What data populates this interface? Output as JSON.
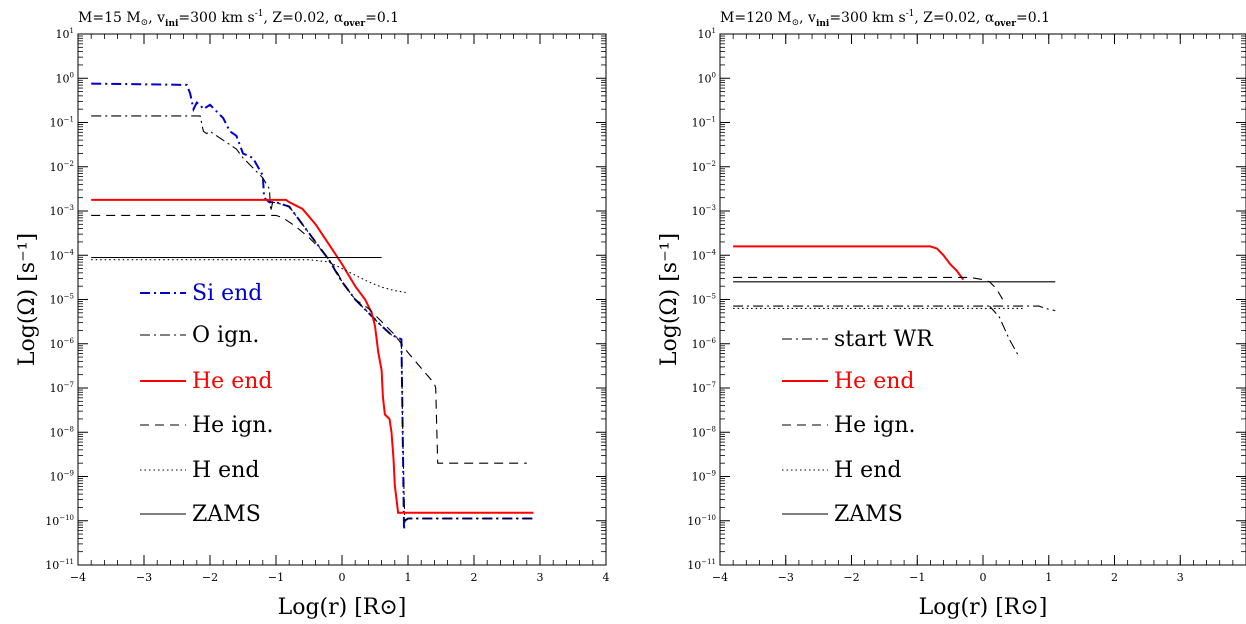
{
  "chart_data": [
    {
      "type": "line",
      "title_parts": {
        "M": "M=15 M",
        "sun": "⊙",
        "v": ", v",
        "v_sub": "ini",
        "v_eq": "=300 km s",
        "v_exp": "-1",
        "z": ", Z=0.02, α",
        "a_sub": "over",
        "a_eq": "=0.1"
      },
      "xlabel": "Log(r) [R⊙]",
      "ylabel": "Log(Ω) [s⁻¹]",
      "xlim": [
        -4,
        4
      ],
      "ylim": [
        -11,
        1
      ],
      "xticks": [
        -4,
        -3,
        -2,
        -1,
        0,
        1,
        2,
        3,
        4
      ],
      "yticks": [
        1,
        0,
        -1,
        -2,
        -3,
        -4,
        -5,
        -6,
        -7,
        -8,
        -9,
        -10,
        -11
      ],
      "ytick_base": "10",
      "legend_position": "bottom-left",
      "series": [
        {
          "name": "Si end",
          "color": "#0000cc",
          "dash": "dashdot",
          "x": [
            -3.8,
            -2.35,
            -2.3,
            -2.25,
            -2.2,
            -2.15,
            -2.1,
            -2.0,
            -1.9,
            -1.8,
            -1.7,
            -1.6,
            -1.5,
            -1.35,
            -1.2,
            -1.18,
            -1.1,
            -1.0,
            -0.9,
            -0.8,
            -0.7,
            -0.6,
            -0.4,
            -0.2,
            0.0,
            0.2,
            0.4,
            0.6,
            0.75,
            0.9,
            0.92,
            0.94,
            0.95,
            1.0,
            1.5,
            2.0,
            2.5,
            2.9
          ],
          "y": [
            -0.12,
            -0.15,
            -0.35,
            -0.7,
            -0.55,
            -0.6,
            -0.7,
            -0.6,
            -0.75,
            -0.9,
            -1.2,
            -1.3,
            -1.7,
            -1.8,
            -2.2,
            -2.7,
            -2.8,
            -2.8,
            -2.85,
            -2.9,
            -3.1,
            -3.3,
            -3.7,
            -4.1,
            -4.6,
            -5.0,
            -5.3,
            -5.6,
            -5.8,
            -5.9,
            -8.0,
            -10.2,
            -10.0,
            -9.95,
            -9.95,
            -9.95,
            -9.95,
            -9.95
          ]
        },
        {
          "name": "O ign.",
          "color": "#000000",
          "dash": "dashdot",
          "x": [
            -3.8,
            -2.15,
            -2.1,
            -2.05,
            -2.0,
            -1.9,
            -1.8,
            -1.7,
            -1.6,
            -1.5,
            -1.4,
            -1.3,
            -1.2,
            -1.1,
            -1.08,
            -1.05,
            -0.9,
            -0.8,
            -0.6,
            -0.4,
            -0.2,
            0.0,
            0.2,
            0.4,
            0.6,
            0.75,
            0.9,
            0.92,
            0.95,
            1.0,
            1.5,
            2.0,
            2.5,
            2.9
          ],
          "y": [
            -0.85,
            -0.85,
            -1.2,
            -1.25,
            -1.2,
            -1.3,
            -1.4,
            -1.5,
            -1.6,
            -1.8,
            -1.95,
            -2.1,
            -2.25,
            -2.5,
            -3.0,
            -2.8,
            -2.85,
            -2.9,
            -3.3,
            -3.7,
            -4.1,
            -4.6,
            -5.0,
            -5.3,
            -5.6,
            -5.8,
            -5.9,
            -8.0,
            -10.0,
            -9.95,
            -9.95,
            -9.95,
            -9.95,
            -9.95
          ]
        },
        {
          "name": "He end",
          "color": "#ff0000",
          "dash": "solid",
          "x": [
            -3.8,
            -2.0,
            -0.85,
            -0.8,
            -0.6,
            -0.4,
            -0.2,
            0.0,
            0.2,
            0.35,
            0.45,
            0.5,
            0.55,
            0.6,
            0.62,
            0.65,
            0.72,
            0.75,
            0.78,
            0.8,
            0.85,
            1.0,
            2.0,
            2.9
          ],
          "y": [
            -2.75,
            -2.75,
            -2.75,
            -2.8,
            -2.95,
            -3.3,
            -3.75,
            -4.2,
            -4.7,
            -5.0,
            -5.3,
            -5.6,
            -6.2,
            -6.6,
            -7.2,
            -7.6,
            -7.7,
            -8.0,
            -8.6,
            -9.2,
            -9.82,
            -9.82,
            -9.82,
            -9.82
          ]
        },
        {
          "name": "He ign.",
          "color": "#000000",
          "dash": "dashed",
          "x": [
            -3.8,
            -1.0,
            -0.9,
            -0.7,
            -0.5,
            -0.3,
            -0.1,
            0.0,
            0.2,
            0.4,
            0.6,
            0.8,
            1.0,
            1.4,
            1.42,
            1.45,
            2.0,
            2.8
          ],
          "y": [
            -3.1,
            -3.1,
            -3.15,
            -3.35,
            -3.6,
            -3.9,
            -4.3,
            -4.6,
            -5.0,
            -5.2,
            -5.5,
            -5.8,
            -6.2,
            -6.9,
            -7.0,
            -8.7,
            -8.7,
            -8.7
          ]
        },
        {
          "name": "H end",
          "color": "#000000",
          "dash": "dotted",
          "x": [
            -3.8,
            -0.5,
            -0.2,
            0.0,
            0.2,
            0.4,
            0.6,
            0.8,
            1.0
          ],
          "y": [
            -4.1,
            -4.1,
            -4.15,
            -4.3,
            -4.45,
            -4.6,
            -4.72,
            -4.8,
            -4.85
          ]
        },
        {
          "name": "ZAMS",
          "color": "#000000",
          "dash": "solid",
          "x": [
            -3.8,
            0.6
          ],
          "y": [
            -4.05,
            -4.05
          ]
        }
      ]
    },
    {
      "type": "line",
      "title_parts": {
        "M": "M=120 M",
        "sun": "⊙",
        "v": ", v",
        "v_sub": "ini",
        "v_eq": "=300 km s",
        "v_exp": "-1",
        "z": ", Z=0.02, α",
        "a_sub": "over",
        "a_eq": "=0.1"
      },
      "xlabel": "Log(r) [R⊙]",
      "ylabel": "Log(Ω) [s⁻¹]",
      "xlim": [
        -4,
        4
      ],
      "ylim": [
        -11,
        1
      ],
      "xticks": [
        -4,
        -3,
        -2,
        -1,
        0,
        1,
        2,
        3
      ],
      "yticks": [
        1,
        0,
        -1,
        -2,
        -3,
        -4,
        -5,
        -6,
        -7,
        -8,
        -9,
        -10,
        -11
      ],
      "ytick_base": "10",
      "legend_position": "bottom-left",
      "series": [
        {
          "name": "start WR",
          "color": "#000000",
          "dash": "dashdot",
          "x": [
            -3.8,
            0.5,
            0.7,
            0.85,
            0.95,
            1.1
          ],
          "y": [
            -5.15,
            -5.15,
            -5.15,
            -5.15,
            -5.2,
            -5.25
          ],
          "x2": [
            0.1,
            0.25,
            0.4,
            0.55
          ],
          "y2": [
            -5.15,
            -5.4,
            -5.9,
            -6.3
          ]
        },
        {
          "name": "He end",
          "color": "#ff0000",
          "dash": "solid",
          "x": [
            -3.8,
            -0.8,
            -0.7,
            -0.6,
            -0.5,
            -0.4,
            -0.3
          ],
          "y": [
            -3.8,
            -3.8,
            -3.85,
            -4.0,
            -4.2,
            -4.35,
            -4.55
          ]
        },
        {
          "name": "He ign.",
          "color": "#000000",
          "dash": "dashed",
          "x": [
            -3.8,
            -0.2,
            0.0,
            0.1,
            0.2,
            0.3
          ],
          "y": [
            -4.5,
            -4.5,
            -4.55,
            -4.6,
            -4.75,
            -5.0
          ]
        },
        {
          "name": "H end",
          "color": "#000000",
          "dash": "dotted",
          "x": [
            -3.8,
            0.6
          ],
          "y": [
            -5.2,
            -5.2
          ]
        },
        {
          "name": "ZAMS",
          "color": "#000000",
          "dash": "solid",
          "x": [
            -3.8,
            1.1
          ],
          "y": [
            -4.6,
            -4.6
          ]
        }
      ]
    }
  ]
}
